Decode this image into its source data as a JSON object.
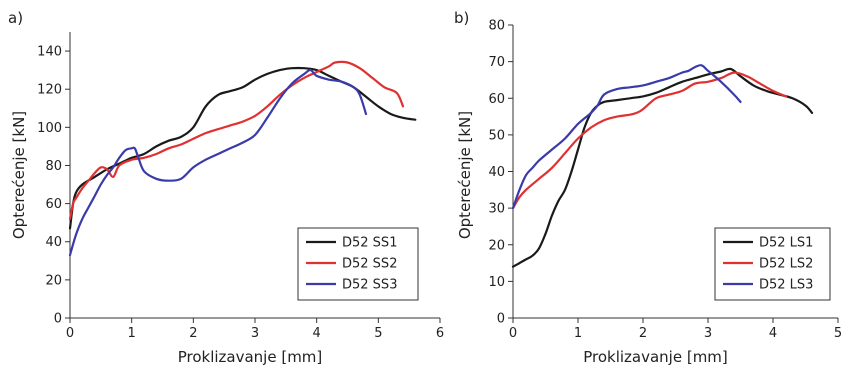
{
  "chart_data": [
    {
      "panel_label": "a)",
      "type": "line",
      "xlabel": "Proklizavanje [mm]",
      "ylabel": "Opterećenje [kN]",
      "xlim": [
        0,
        6
      ],
      "ylim": [
        0,
        150
      ],
      "xticks": [
        0,
        1,
        2,
        3,
        4,
        5,
        6
      ],
      "yticks": [
        0,
        20,
        40,
        60,
        80,
        100,
        120,
        140
      ],
      "grid": false,
      "legend_position": "bottom-right",
      "series": [
        {
          "name": "D52 SS1",
          "color": "#1a1a1a",
          "x": [
            0,
            0.05,
            0.1,
            0.2,
            0.4,
            0.6,
            0.8,
            1.0,
            1.2,
            1.4,
            1.6,
            1.8,
            2.0,
            2.2,
            2.4,
            2.6,
            2.8,
            3.0,
            3.2,
            3.4,
            3.6,
            3.8,
            4.0,
            4.2,
            4.4,
            4.6,
            4.8,
            5.0,
            5.2,
            5.4,
            5.6
          ],
          "y": [
            47,
            60,
            66,
            70,
            74,
            78,
            81,
            84,
            86,
            90,
            93,
            95,
            100,
            111,
            117,
            119,
            121,
            125,
            128,
            130,
            131,
            131,
            130,
            127,
            124,
            121,
            116,
            111,
            107,
            105,
            104
          ]
        },
        {
          "name": "D52 SS2",
          "color": "#e03030",
          "x": [
            0,
            0.05,
            0.1,
            0.2,
            0.3,
            0.4,
            0.5,
            0.6,
            0.7,
            0.8,
            1.0,
            1.2,
            1.4,
            1.6,
            1.8,
            2.0,
            2.2,
            2.4,
            2.6,
            2.8,
            3.0,
            3.2,
            3.4,
            3.6,
            3.8,
            4.0,
            4.2,
            4.3,
            4.5,
            4.7,
            4.9,
            5.1,
            5.3,
            5.4
          ],
          "y": [
            52,
            60,
            63,
            68,
            72,
            76,
            79,
            78,
            74,
            80,
            83,
            84,
            86,
            89,
            91,
            94,
            97,
            99,
            101,
            103,
            106,
            111,
            117,
            122,
            126,
            129,
            132,
            134,
            134,
            131,
            126,
            121,
            118,
            111
          ]
        },
        {
          "name": "D52 SS3",
          "color": "#3a3aaa",
          "x": [
            0,
            0.1,
            0.2,
            0.3,
            0.4,
            0.5,
            0.6,
            0.7,
            0.8,
            0.9,
            1.0,
            1.05,
            1.1,
            1.2,
            1.4,
            1.6,
            1.8,
            2.0,
            2.2,
            2.4,
            2.6,
            2.8,
            3.0,
            3.2,
            3.4,
            3.6,
            3.8,
            3.9,
            4.0,
            4.2,
            4.4,
            4.6,
            4.7,
            4.8
          ],
          "y": [
            33,
            44,
            52,
            58,
            64,
            70,
            75,
            79,
            84,
            88,
            89,
            89,
            85,
            77,
            73,
            72,
            73,
            79,
            83,
            86,
            89,
            92,
            96,
            105,
            115,
            123,
            128,
            130,
            127,
            125,
            124,
            121,
            117,
            107
          ]
        }
      ]
    },
    {
      "panel_label": "b)",
      "type": "line",
      "xlabel": "Proklizavanje [mm]",
      "ylabel": "Opterećenje [kN]",
      "xlim": [
        0,
        5
      ],
      "ylim": [
        0,
        80
      ],
      "xticks": [
        0,
        1,
        2,
        3,
        4,
        5
      ],
      "yticks": [
        0,
        10,
        20,
        30,
        40,
        50,
        60,
        70,
        80
      ],
      "grid": false,
      "legend_position": "bottom-right",
      "series": [
        {
          "name": "D52 LS1",
          "color": "#1a1a1a",
          "x": [
            0,
            0.1,
            0.2,
            0.3,
            0.4,
            0.5,
            0.6,
            0.7,
            0.8,
            0.9,
            1.0,
            1.1,
            1.2,
            1.3,
            1.4,
            1.6,
            1.8,
            2.0,
            2.2,
            2.4,
            2.6,
            2.8,
            3.0,
            3.2,
            3.35,
            3.5,
            3.7,
            3.9,
            4.1,
            4.3,
            4.5,
            4.6
          ],
          "y": [
            14,
            15,
            16,
            17,
            19,
            23,
            28,
            32,
            35,
            40,
            46,
            52,
            56,
            58,
            59,
            59.5,
            60,
            60.5,
            61.5,
            63,
            64.5,
            65.5,
            66.5,
            67.3,
            68,
            66,
            63.5,
            62,
            61,
            60,
            58,
            56
          ]
        },
        {
          "name": "D52 LS2",
          "color": "#e03030",
          "x": [
            0,
            0.1,
            0.2,
            0.4,
            0.6,
            0.8,
            1.0,
            1.2,
            1.4,
            1.6,
            1.8,
            1.9,
            2.0,
            2.2,
            2.4,
            2.6,
            2.8,
            3.0,
            3.2,
            3.4,
            3.6,
            3.8,
            4.0,
            4.2
          ],
          "y": [
            30,
            33,
            35,
            38,
            41,
            45,
            49,
            52,
            54,
            55,
            55.5,
            56,
            57,
            60,
            61,
            62,
            64,
            64.5,
            65.5,
            67,
            66,
            64,
            62,
            60.5
          ]
        },
        {
          "name": "D52 LS3",
          "color": "#3a3aaa",
          "x": [
            0,
            0.1,
            0.2,
            0.3,
            0.4,
            0.6,
            0.8,
            1.0,
            1.2,
            1.3,
            1.4,
            1.6,
            1.8,
            2.0,
            2.2,
            2.4,
            2.6,
            2.7,
            2.8,
            2.9,
            3.0,
            3.2,
            3.4,
            3.5
          ],
          "y": [
            30,
            35,
            39,
            41,
            43,
            46,
            49,
            53,
            56,
            58,
            61,
            62.5,
            63,
            63.5,
            64.5,
            65.5,
            67,
            67.5,
            68.5,
            69,
            67.5,
            64.5,
            61,
            59
          ]
        }
      ]
    }
  ]
}
